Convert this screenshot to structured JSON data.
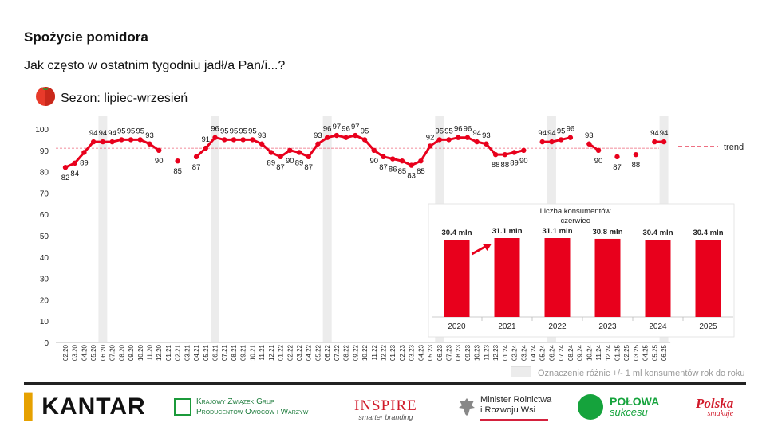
{
  "title": "Spożycie pomidora",
  "subtitle": "Jak często w ostatnim tygodniu jadł/a Pan/i...?",
  "season_label": "Sezon: lipiec-wrzesień",
  "legend_note": "Oznaczenie różnic +/- 1 ml konsumentów rok do roku",
  "logos": {
    "kantar": "KANTAR",
    "kzg": [
      "Krajowy Związek Grup",
      "Producentów Owoców i Warzyw"
    ],
    "inspire_main": "INSPIRE",
    "inspire_sub": "smarter branding",
    "ministry": [
      "Minister Rolnictwa",
      "i Rozwoju Wsi"
    ],
    "polowa_a": "POŁOWA",
    "polowa_b": "sukcesu",
    "polska_a": "Polska",
    "polska_b": "smakuje"
  },
  "colors": {
    "series": "#e8001c",
    "trend": "#e8405a",
    "band": "#ececec",
    "inset_bar": "#e8001c"
  },
  "chart_data": [
    {
      "type": "line",
      "y_ticks": [
        0,
        10,
        20,
        30,
        40,
        50,
        60,
        70,
        80,
        90,
        100
      ],
      "ylim": [
        0,
        100
      ],
      "x": [
        "02.20",
        "03.20",
        "04.20",
        "05.20",
        "06.20",
        "07.20",
        "08.20",
        "09.20",
        "10.20",
        "11.20",
        "12.20",
        "01.21",
        "02.21",
        "03.21",
        "04.21",
        "05.21",
        "06.21",
        "07.21",
        "08.21",
        "09.21",
        "10.21",
        "11.21",
        "12.21",
        "01.22",
        "02.22",
        "03.22",
        "04.22",
        "05.22",
        "06.22",
        "07.22",
        "08.22",
        "09.22",
        "10.22",
        "11.22",
        "12.22",
        "01.23",
        "02.23",
        "03.23",
        "04.23",
        "05.23",
        "06.23",
        "07.23",
        "08.23",
        "09.23",
        "10.23",
        "11.23",
        "12.23",
        "01.24",
        "02.24",
        "03.24",
        "04.24",
        "05.24",
        "06.24",
        "07.24",
        "08.24",
        "09.24",
        "10.24",
        "11.24",
        "12.24",
        "01.25",
        "02.25",
        "03.25",
        "04.25",
        "05.25",
        "06.25"
      ],
      "values": [
        82,
        84,
        89,
        94,
        94,
        94,
        95,
        95,
        95,
        93,
        90,
        null,
        85,
        null,
        87,
        91,
        96,
        95,
        95,
        95,
        95,
        93,
        89,
        87,
        90,
        89,
        87,
        93,
        96,
        97,
        96,
        97,
        95,
        90,
        87,
        86,
        85,
        83,
        85,
        92,
        95,
        95,
        96,
        96,
        94,
        93,
        88,
        88,
        89,
        90,
        null,
        94,
        94,
        95,
        96,
        null,
        93,
        90,
        null,
        87,
        null,
        88,
        null,
        94,
        94
      ],
      "value_labels": [
        "82",
        "84",
        "89",
        "94",
        "94",
        "94",
        "95",
        "95",
        "95",
        "93",
        "90",
        "",
        "85",
        "",
        "87",
        "91",
        "96",
        "95",
        "95",
        "95",
        "95",
        "93",
        "89",
        "87",
        "90",
        "89",
        "87",
        "93",
        "96",
        "97",
        "96",
        "97",
        "95",
        "90",
        "87",
        "86",
        "85",
        "83",
        "85",
        "92",
        "95",
        "95",
        "96",
        "96",
        "94",
        "93",
        "88",
        "88",
        "89",
        "90",
        "",
        "94",
        "94",
        "95",
        "96",
        "",
        "93",
        "90",
        "",
        "87",
        "",
        "88",
        "",
        "94",
        "94"
      ],
      "highlight_bands": [
        "06.20",
        "06.21",
        "06.22",
        "06.23",
        "06.24",
        "06.25"
      ],
      "trend": {
        "label": "trend",
        "value": 91
      }
    },
    {
      "type": "bar",
      "title": [
        "Liczba konsumentów",
        "czerwiec"
      ],
      "categories": [
        "2020",
        "2021",
        "2022",
        "2023",
        "2024",
        "2025"
      ],
      "values": [
        30.4,
        31.1,
        31.1,
        30.8,
        30.4,
        30.4
      ],
      "value_labels": [
        "30.4 mln",
        "31.1 mln",
        "31.1 mln",
        "30.8 mln",
        "30.4 mln",
        "30.4 mln"
      ],
      "arrow_category": "2021"
    }
  ]
}
